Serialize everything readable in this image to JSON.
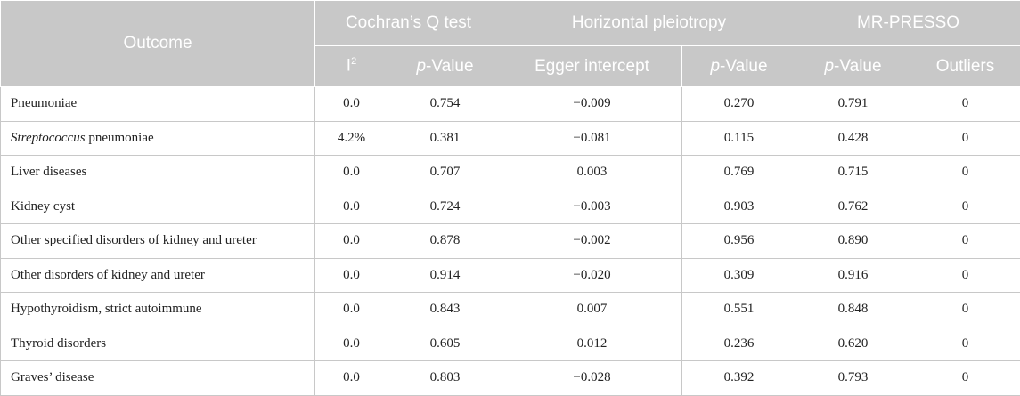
{
  "header": {
    "outcome": "Outcome",
    "cochran": "Cochran’s Q test",
    "pleiotropy": "Horizontal pleiotropy",
    "mrpresso": "MR-PRESSO",
    "i2_base": "I",
    "i2_sup": "2",
    "p_italic": "p",
    "p_rest": "-Value",
    "egger": "Egger intercept",
    "outliers": "Outliers"
  },
  "rows": [
    {
      "outcome_italic": "",
      "outcome": "Pneumoniae",
      "i2": "0.0",
      "q_p": "0.754",
      "egger": "−0.009",
      "egger_p": "0.270",
      "presso_p": "0.791",
      "outliers": "0"
    },
    {
      "outcome_italic": "Streptococcus",
      "outcome": " pneumoniae",
      "i2": "4.2%",
      "q_p": "0.381",
      "egger": "−0.081",
      "egger_p": "0.115",
      "presso_p": "0.428",
      "outliers": "0"
    },
    {
      "outcome_italic": "",
      "outcome": "Liver diseases",
      "i2": "0.0",
      "q_p": "0.707",
      "egger": "0.003",
      "egger_p": "0.769",
      "presso_p": "0.715",
      "outliers": "0"
    },
    {
      "outcome_italic": "",
      "outcome": "Kidney cyst",
      "i2": "0.0",
      "q_p": "0.724",
      "egger": "−0.003",
      "egger_p": "0.903",
      "presso_p": "0.762",
      "outliers": "0"
    },
    {
      "outcome_italic": "",
      "outcome": "Other specified disorders of kidney and ureter",
      "i2": "0.0",
      "q_p": "0.878",
      "egger": "−0.002",
      "egger_p": "0.956",
      "presso_p": "0.890",
      "outliers": "0"
    },
    {
      "outcome_italic": "",
      "outcome": "Other disorders of kidney and ureter",
      "i2": "0.0",
      "q_p": "0.914",
      "egger": "−0.020",
      "egger_p": "0.309",
      "presso_p": "0.916",
      "outliers": "0"
    },
    {
      "outcome_italic": "",
      "outcome": "Hypothyroidism, strict autoimmune",
      "i2": "0.0",
      "q_p": "0.843",
      "egger": "0.007",
      "egger_p": "0.551",
      "presso_p": "0.848",
      "outliers": "0"
    },
    {
      "outcome_italic": "",
      "outcome": "Thyroid disorders",
      "i2": "0.0",
      "q_p": "0.605",
      "egger": "0.012",
      "egger_p": "0.236",
      "presso_p": "0.620",
      "outliers": "0"
    },
    {
      "outcome_italic": "",
      "outcome": "Graves’ disease",
      "i2": "0.0",
      "q_p": "0.803",
      "egger": "−0.028",
      "egger_p": "0.392",
      "presso_p": "0.793",
      "outliers": "0"
    }
  ]
}
